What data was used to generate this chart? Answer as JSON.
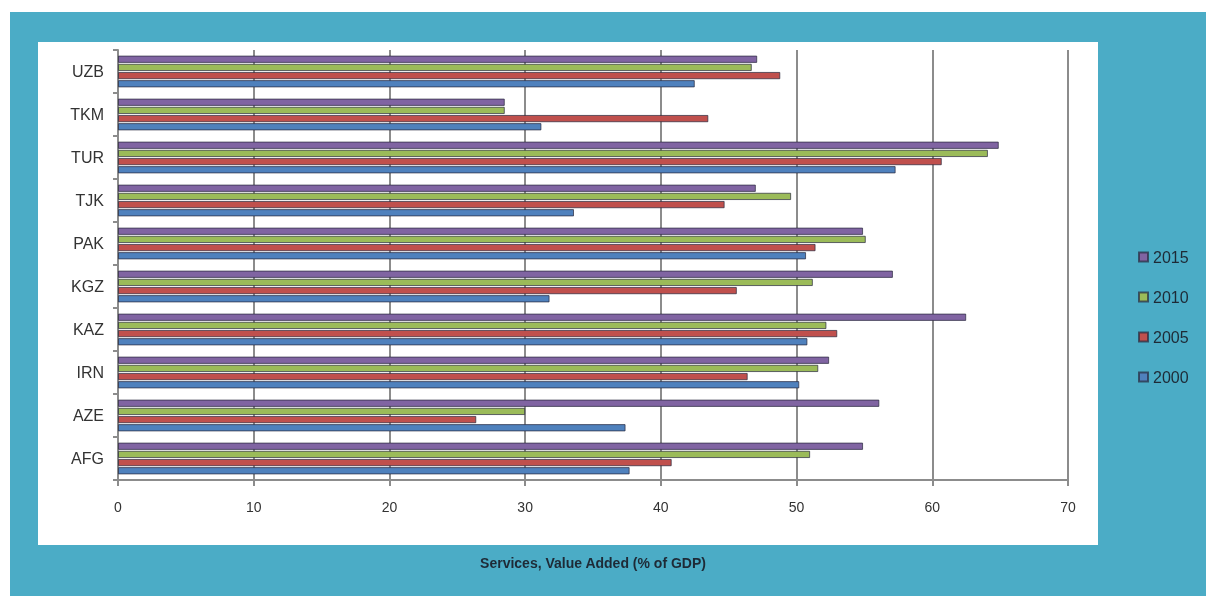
{
  "chart_data": {
    "type": "bar",
    "orientation": "horizontal",
    "xlabel": "Services, Value Added (% of GDP)",
    "categories": [
      "UZB",
      "TKM",
      "TUR",
      "TJK",
      "PAK",
      "KGZ",
      "KAZ",
      "IRN",
      "AZE",
      "AFG"
    ],
    "series": [
      {
        "name": "2015",
        "color": "#8064a2",
        "values": [
          47.1,
          28.5,
          64.9,
          47.0,
          54.9,
          57.1,
          62.5,
          52.4,
          56.1,
          54.9
        ]
      },
      {
        "name": "2010",
        "color": "#9bbb59",
        "values": [
          46.7,
          28.5,
          64.1,
          49.6,
          55.1,
          51.2,
          52.2,
          51.6,
          30.0,
          51.0
        ]
      },
      {
        "name": "2005",
        "color": "#c0504d",
        "values": [
          48.8,
          43.5,
          60.7,
          44.7,
          51.4,
          45.6,
          53.0,
          46.4,
          26.4,
          40.8
        ]
      },
      {
        "name": "2000",
        "color": "#4f81bd",
        "values": [
          42.5,
          31.2,
          57.3,
          33.6,
          50.7,
          31.8,
          50.8,
          50.2,
          37.4,
          37.7
        ]
      }
    ],
    "xlim": [
      0,
      70
    ],
    "xticks": [
      0,
      10,
      20,
      30,
      40,
      50,
      60,
      70
    ],
    "grid": "x",
    "legend": "right"
  }
}
